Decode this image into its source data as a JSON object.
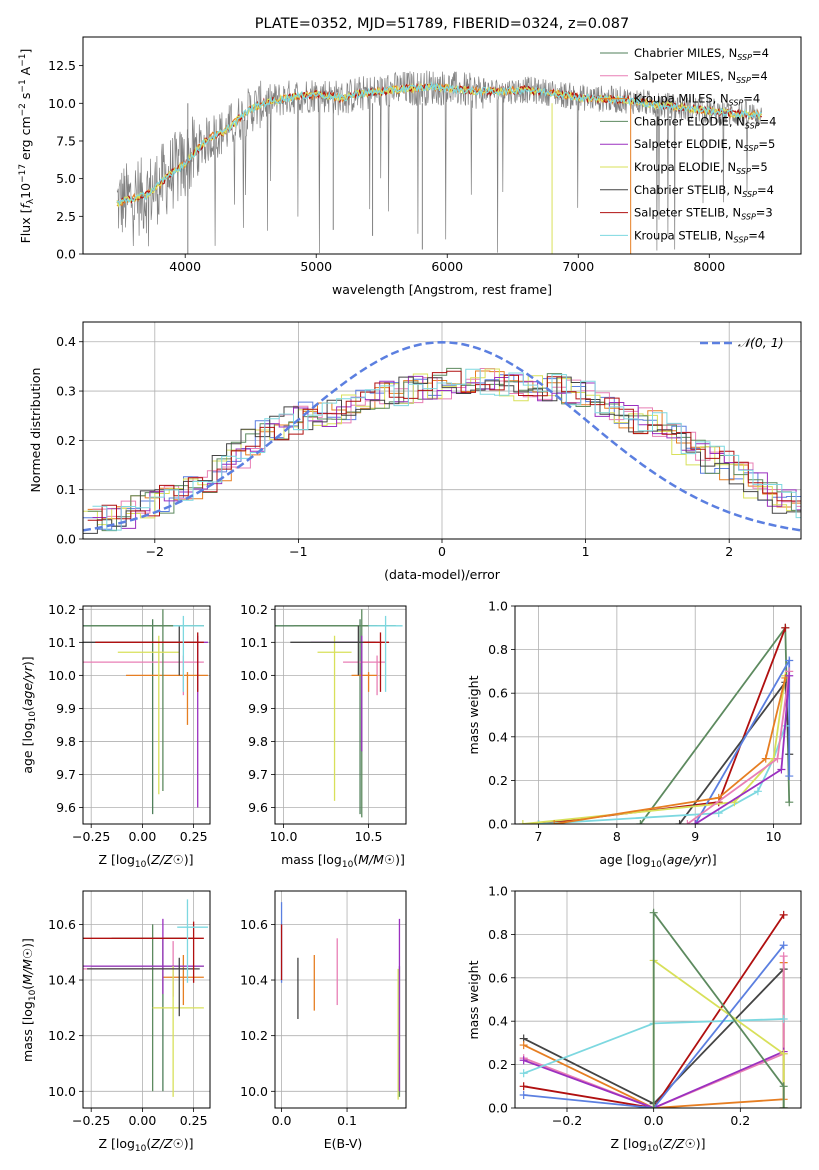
{
  "colors": {
    "Chabrier MILES": "#4f7f5a",
    "Salpeter MILES": "#e87fb5",
    "Kroupa MILES": "#e67e22",
    "Chabrier ELODIE": "#5d8a5f",
    "Salpeter ELODIE": "#9b30c0",
    "Kroupa ELODIE": "#d8e05a",
    "Chabrier STELIB": "#444444",
    "Salpeter STELIB": "#b01010",
    "Kroupa STELIB": "#7dd8e0",
    "blue": "#5b7fe0",
    "gray": "#808080",
    "gaussian": "#5b7fe0"
  },
  "chart_data": [
    {
      "type": "line",
      "title": "PLATE=0352, MJD=51789, FIBERID=0324, z=0.087",
      "xlabel": "wavelength [Angstrom, rest frame]",
      "ylabel_parts": [
        "Flux [",
        "f",
        "λ",
        "10",
        "−17",
        " erg cm",
        "−2",
        " s",
        "−1",
        " A",
        "−1",
        "]"
      ],
      "xlim": [
        3220,
        8700
      ],
      "ylim": [
        0,
        14.4
      ],
      "xticks": [
        4000,
        5000,
        6000,
        7000,
        8000
      ],
      "yticks": [
        0.0,
        2.5,
        5.0,
        7.5,
        10.0,
        12.5
      ],
      "ytick_labels": [
        "0.0",
        "2.5",
        "5.0",
        "7.5",
        "10.0",
        "12.5"
      ],
      "legend": [
        {
          "label": "Chabrier MILES, N",
          "sub": "SSP",
          "n": "=4"
        },
        {
          "label": "Salpeter MILES, N",
          "sub": "SSP",
          "n": "=4"
        },
        {
          "label": "Kroupa MILES, N",
          "sub": "SSP",
          "n": "=4"
        },
        {
          "label": "Chabrier ELODIE, N",
          "sub": "SSP",
          "n": "=4"
        },
        {
          "label": "Salpeter ELODIE, N",
          "sub": "SSP",
          "n": "=5"
        },
        {
          "label": "Kroupa ELODIE, N",
          "sub": "SSP",
          "n": "=5"
        },
        {
          "label": "Chabrier STELIB, N",
          "sub": "SSP",
          "n": "=4"
        },
        {
          "label": "Salpeter STELIB, N",
          "sub": "SSP",
          "n": "=3"
        },
        {
          "label": "Kroupa STELIB, N",
          "sub": "SSP",
          "n": "=4"
        }
      ],
      "legend_position": "right",
      "model_continuum": {
        "x": [
          3500,
          3600,
          3700,
          3800,
          3900,
          4000,
          4100,
          4200,
          4300,
          4400,
          4500,
          4600,
          4700,
          4800,
          4900,
          5000,
          5100,
          5200,
          5300,
          5400,
          5500,
          5600,
          5700,
          5800,
          5900,
          6000,
          6200,
          6400,
          6600,
          6800,
          7000,
          7200,
          7400,
          7600,
          7800,
          8000,
          8200,
          8400
        ],
        "y": [
          3.4,
          3.7,
          3.9,
          4.6,
          5.4,
          6.0,
          7.0,
          7.8,
          8.1,
          8.9,
          9.6,
          10.0,
          10.2,
          10.4,
          10.5,
          10.6,
          10.5,
          10.3,
          10.6,
          10.7,
          10.8,
          10.9,
          11.0,
          11.0,
          11.1,
          11.0,
          10.8,
          10.8,
          10.9,
          10.7,
          10.4,
          10.3,
          10.2,
          9.9,
          9.7,
          9.5,
          9.3,
          9.2
        ]
      }
    },
    {
      "type": "bar",
      "xlabel": "(data-model)/error",
      "ylabel": "Normed distribution",
      "xlim": [
        -2.5,
        2.5
      ],
      "ylim": [
        0,
        0.44
      ],
      "xticks": [
        -2,
        -1,
        0,
        1,
        2
      ],
      "yticks": [
        0.0,
        0.1,
        0.2,
        0.3,
        0.4
      ],
      "legend": [
        "𝒩(0, 1)"
      ],
      "legend_position": "top-right",
      "bin_width": 0.1,
      "histogram_mean": [
        0.04,
        0.045,
        0.05,
        0.06,
        0.07,
        0.08,
        0.09,
        0.11,
        0.12,
        0.14,
        0.17,
        0.2,
        0.22,
        0.23,
        0.24,
        0.25,
        0.25,
        0.26,
        0.27,
        0.28,
        0.29,
        0.3,
        0.3,
        0.31,
        0.31,
        0.32,
        0.32,
        0.32,
        0.32,
        0.31,
        0.31,
        0.31,
        0.31,
        0.3,
        0.29,
        0.27,
        0.26,
        0.25,
        0.24,
        0.23,
        0.22,
        0.2,
        0.18,
        0.16,
        0.15,
        0.13,
        0.11,
        0.09,
        0.08,
        0.07
      ]
    },
    {
      "type": "scatter",
      "xlabel": "Z [log10(Z/Z☉)]",
      "ylabel": "age  [log10(age/yr)]",
      "xlim": [
        -0.29,
        0.33
      ],
      "ylim": [
        9.55,
        10.21
      ],
      "xticks": [
        -0.25,
        0.0,
        0.25
      ],
      "xtick_labels": [
        "−0.25",
        "0.00",
        "0.25"
      ],
      "yticks": [
        9.6,
        9.7,
        9.8,
        9.9,
        10.0,
        10.1,
        10.2
      ],
      "series": [
        {
          "name": "Chabrier MILES",
          "x": 0.05,
          "y": 10.15
        },
        {
          "name": "Salpeter MILES",
          "x": 0.2,
          "y": 10.04
        },
        {
          "name": "Kroupa MILES",
          "x": 0.22,
          "y": 10.0
        },
        {
          "name": "Chabrier ELODIE",
          "x": 0.1,
          "y": 10.15
        },
        {
          "name": "Salpeter ELODIE",
          "x": 0.27,
          "y": 10.1
        },
        {
          "name": "Kroupa ELODIE",
          "x": 0.08,
          "y": 10.07
        },
        {
          "name": "Chabrier STELIB",
          "x": 0.18,
          "y": 10.1
        },
        {
          "name": "Salpeter STELIB",
          "x": 0.27,
          "y": 10.1
        },
        {
          "name": "Kroupa STELIB",
          "x": 0.2,
          "y": 10.15
        }
      ]
    },
    {
      "type": "scatter",
      "xlabel": "mass [log10(M/M☉)]",
      "xlim": [
        9.95,
        10.72
      ],
      "ylim": [
        9.55,
        10.21
      ],
      "xticks": [
        10.0,
        10.5
      ],
      "xtick_labels": [
        "10.0",
        "10.5"
      ],
      "yticks": [
        9.6,
        9.7,
        9.8,
        9.9,
        10.0,
        10.1,
        10.2
      ],
      "series": [
        {
          "name": "Chabrier MILES",
          "x": 10.45,
          "y": 10.15
        },
        {
          "name": "Salpeter MILES",
          "x": 10.55,
          "y": 10.04
        },
        {
          "name": "Kroupa MILES",
          "x": 10.5,
          "y": 10.0
        },
        {
          "name": "Chabrier ELODIE",
          "x": 10.46,
          "y": 10.15
        },
        {
          "name": "Salpeter ELODIE",
          "x": 10.46,
          "y": 10.1
        },
        {
          "name": "Kroupa ELODIE",
          "x": 10.3,
          "y": 10.07
        },
        {
          "name": "Chabrier STELIB",
          "x": 10.44,
          "y": 10.1
        },
        {
          "name": "Salpeter STELIB",
          "x": 10.57,
          "y": 10.1
        },
        {
          "name": "Kroupa STELIB",
          "x": 10.6,
          "y": 10.15
        }
      ]
    },
    {
      "type": "line",
      "xlabel": "age  [log10(age/yr)]",
      "ylabel": "mass weight",
      "xlim": [
        6.7,
        10.35
      ],
      "ylim": [
        0,
        1
      ],
      "xticks": [
        7,
        8,
        9,
        10
      ],
      "yticks": [
        0.0,
        0.2,
        0.4,
        0.6,
        0.8,
        1.0
      ],
      "series": [
        {
          "name": "Chabrier ELODIE",
          "x": [
            8.3,
            10.15,
            10.2
          ],
          "y": [
            0.0,
            0.9,
            0.1
          ]
        },
        {
          "name": "Salpeter STELIB",
          "x": [
            7.0,
            9.3,
            10.15
          ],
          "y": [
            0.0,
            0.1,
            0.9
          ]
        },
        {
          "name": "Chabrier STELIB",
          "x": [
            8.8,
            10.15,
            10.2
          ],
          "y": [
            0.0,
            0.65,
            0.32
          ]
        },
        {
          "name": "Blue",
          "x": [
            9.0,
            10.2,
            10.2
          ],
          "y": [
            0.0,
            0.75,
            0.22
          ]
        },
        {
          "name": "Kroupa STELIB",
          "x": [
            7.0,
            9.3,
            9.8,
            10.0,
            10.15
          ],
          "y": [
            0.0,
            0.05,
            0.15,
            0.3,
            0.45
          ]
        },
        {
          "name": "Kroupa ELODIE",
          "x": [
            6.8,
            9.5,
            10.0,
            10.15
          ],
          "y": [
            0.0,
            0.1,
            0.3,
            0.68
          ]
        },
        {
          "name": "Kroupa MILES",
          "x": [
            7.2,
            9.3,
            9.9,
            10.15
          ],
          "y": [
            0.0,
            0.12,
            0.3,
            0.67
          ]
        },
        {
          "name": "Salpeter MILES",
          "x": [
            8.9,
            10.05,
            10.2
          ],
          "y": [
            0.0,
            0.3,
            0.7
          ]
        },
        {
          "name": "Salpeter ELODIE",
          "x": [
            9.0,
            10.1,
            10.2
          ],
          "y": [
            0.0,
            0.25,
            0.68
          ]
        }
      ]
    },
    {
      "type": "scatter",
      "xlabel": "Z [log10(Z/Z☉)]",
      "ylabel": "mass [log10(M/M☉)]",
      "xlim": [
        -0.29,
        0.33
      ],
      "ylim": [
        9.94,
        10.72
      ],
      "xticks": [
        -0.25,
        0.0,
        0.25
      ],
      "xtick_labels": [
        "−0.25",
        "0.00",
        "0.25"
      ],
      "yticks": [
        10.0,
        10.2,
        10.4,
        10.6
      ],
      "series": [
        {
          "name": "Chabrier MILES",
          "x": 0.1,
          "y": 10.45
        },
        {
          "name": "Salpeter MILES",
          "x": 0.15,
          "y": 10.44
        },
        {
          "name": "Kroupa MILES",
          "x": 0.2,
          "y": 10.41
        },
        {
          "name": "Chabrier ELODIE",
          "x": 0.05,
          "y": 10.55
        },
        {
          "name": "Salpeter ELODIE",
          "x": 0.1,
          "y": 10.45
        },
        {
          "name": "Kroupa ELODIE",
          "x": 0.15,
          "y": 10.3
        },
        {
          "name": "Chabrier STELIB",
          "x": 0.18,
          "y": 10.44
        },
        {
          "name": "Salpeter STELIB",
          "x": 0.25,
          "y": 10.55
        },
        {
          "name": "Kroupa STELIB",
          "x": 0.22,
          "y": 10.59
        }
      ]
    },
    {
      "type": "scatter",
      "xlabel": "E(B-V)",
      "xlim": [
        -0.01,
        0.19
      ],
      "ylim": [
        9.94,
        10.72
      ],
      "xticks": [
        0.0,
        0.1
      ],
      "xtick_labels": [
        "0.0",
        "0.1"
      ],
      "yticks": [
        10.0,
        10.2,
        10.4,
        10.6
      ],
      "series": [
        {
          "name": "Blue",
          "x": 0.0,
          "y": 10.55
        },
        {
          "name": "Salpeter STELIB",
          "x": 0.0,
          "y": 10.55
        },
        {
          "name": "Chabrier STELIB",
          "x": 0.025,
          "y": 10.38
        },
        {
          "name": "Kroupa MILES",
          "x": 0.05,
          "y": 10.39
        },
        {
          "name": "Salpeter MILES",
          "x": 0.085,
          "y": 10.43
        },
        {
          "name": "Kroupa ELODIE",
          "x": 0.178,
          "y": 10.2
        },
        {
          "name": "Chabrier ELODIE",
          "x": 0.18,
          "y": 10.2
        },
        {
          "name": "Salpeter ELODIE",
          "x": 0.18,
          "y": 10.3
        }
      ]
    },
    {
      "type": "line",
      "xlabel": "Z [log10(Z/Z☉)]",
      "ylabel": "mass weight",
      "xlim": [
        -0.32,
        0.34
      ],
      "ylim": [
        0,
        1
      ],
      "xticks": [
        -0.2,
        0.0,
        0.2
      ],
      "xtick_labels": [
        "−0.2",
        "0.0",
        "0.2"
      ],
      "yticks": [
        0.0,
        0.2,
        0.4,
        0.6,
        0.8,
        1.0
      ],
      "series": [
        {
          "name": "Chabrier STELIB",
          "x": [
            -0.3,
            0.0,
            0.3,
            0.3
          ],
          "y": [
            0.32,
            0.02,
            0.64,
            0.0
          ]
        },
        {
          "name": "Kroupa MILES",
          "x": [
            -0.3,
            0.0,
            0.3,
            0.3
          ],
          "y": [
            0.29,
            0.0,
            0.04,
            0.67
          ]
        },
        {
          "name": "Salpeter STELIB",
          "x": [
            -0.3,
            0.0,
            0.3
          ],
          "y": [
            0.1,
            0.0,
            0.89
          ]
        },
        {
          "name": "Salpeter MILES",
          "x": [
            -0.3,
            0.0,
            0.3,
            0.3
          ],
          "y": [
            0.23,
            0.0,
            0.25,
            0.7
          ]
        },
        {
          "name": "Salpeter ELODIE",
          "x": [
            -0.3,
            0.0,
            0.3
          ],
          "y": [
            0.22,
            0.0,
            0.26
          ]
        },
        {
          "name": "Kroupa STELIB",
          "x": [
            -0.3,
            0.0,
            0.3
          ],
          "y": [
            0.16,
            0.39,
            0.41
          ]
        },
        {
          "name": "Blue",
          "x": [
            -0.3,
            0.0,
            0.3
          ],
          "y": [
            0.06,
            0.0,
            0.75
          ]
        },
        {
          "name": "Kroupa ELODIE",
          "x": [
            0.0,
            0.0,
            0.3,
            0.3
          ],
          "y": [
            0.0,
            0.68,
            0.25,
            0.0
          ]
        },
        {
          "name": "Chabrier ELODIE",
          "x": [
            0.0,
            0.0,
            0.3,
            0.3
          ],
          "y": [
            0.0,
            0.9,
            0.1,
            0.0
          ]
        }
      ]
    }
  ]
}
